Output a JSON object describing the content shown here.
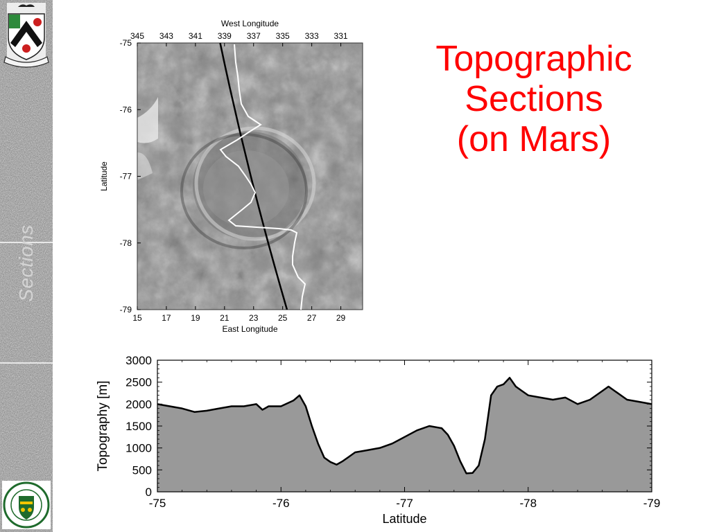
{
  "slide": {
    "title_lines": [
      "Topographic",
      "Sections",
      "(on Mars)"
    ],
    "sidebar_label": "Sections",
    "colors": {
      "title": "#ff0000",
      "profile_fill": "#999999",
      "profile_line": "#000000"
    }
  },
  "chart_data": [
    {
      "type": "image-map",
      "xlabel_top": "West Longitude",
      "xticks_top": [
        "345",
        "343",
        "341",
        "339",
        "337",
        "335",
        "333",
        "331"
      ],
      "xlabel_bottom": "East Longitude",
      "xticks_bottom": [
        "15",
        "17",
        "19",
        "21",
        "23",
        "25",
        "27",
        "29"
      ],
      "ylabel": "Latitude",
      "yticks": [
        "-75",
        "-76",
        "-77",
        "-78",
        "-79"
      ],
      "xlim": [
        15,
        30.5
      ],
      "ylim": [
        -75,
        -79
      ],
      "track_line": {
        "color": "black",
        "x": [
          20.7,
          25.3
        ],
        "y": [
          -75,
          -79
        ]
      },
      "profile_overlay": {
        "color": "white"
      }
    },
    {
      "type": "area",
      "xlabel": "Latitude",
      "ylabel": "Topography [m]",
      "xlim": [
        -75,
        -79
      ],
      "ylim": [
        0,
        3000
      ],
      "xticks": [
        "-75",
        "-76",
        "-77",
        "-78",
        "-79"
      ],
      "yticks": [
        "0",
        "500",
        "1000",
        "1500",
        "2000",
        "2500",
        "3000"
      ],
      "x": [
        -75.0,
        -75.1,
        -75.2,
        -75.3,
        -75.4,
        -75.5,
        -75.6,
        -75.7,
        -75.8,
        -75.85,
        -75.9,
        -76.0,
        -76.1,
        -76.15,
        -76.2,
        -76.25,
        -76.3,
        -76.35,
        -76.4,
        -76.45,
        -76.5,
        -76.55,
        -76.6,
        -76.7,
        -76.8,
        -76.9,
        -77.0,
        -77.1,
        -77.2,
        -77.3,
        -77.35,
        -77.4,
        -77.45,
        -77.5,
        -77.55,
        -77.6,
        -77.65,
        -77.7,
        -77.75,
        -77.8,
        -77.85,
        -77.9,
        -77.95,
        -78.0,
        -78.1,
        -78.2,
        -78.3,
        -78.4,
        -78.5,
        -78.6,
        -78.65,
        -78.7,
        -78.8,
        -78.9,
        -79.0
      ],
      "y": [
        2000,
        1950,
        1900,
        1820,
        1850,
        1900,
        1950,
        1950,
        2000,
        1870,
        1950,
        1950,
        2080,
        2200,
        1950,
        1500,
        1100,
        780,
        680,
        620,
        700,
        800,
        900,
        950,
        1000,
        1100,
        1250,
        1400,
        1500,
        1450,
        1300,
        1050,
        700,
        420,
        430,
        600,
        1200,
        2200,
        2400,
        2450,
        2600,
        2400,
        2300,
        2200,
        2150,
        2100,
        2150,
        2000,
        2100,
        2300,
        2400,
        2300,
        2100,
        2050,
        2000
      ]
    }
  ]
}
